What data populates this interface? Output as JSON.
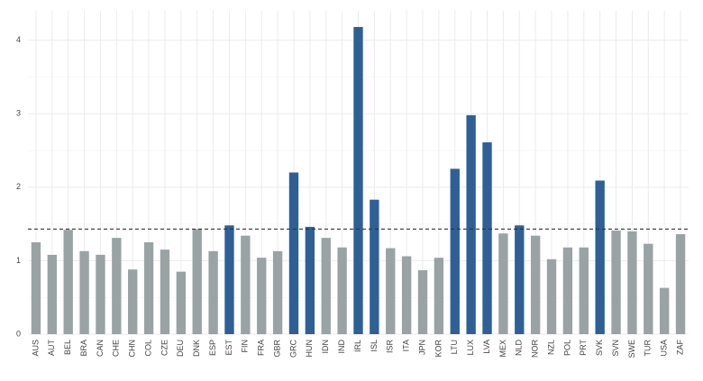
{
  "chart_data": {
    "type": "bar",
    "categories": [
      "AUS",
      "AUT",
      "BEL",
      "BRA",
      "CAN",
      "CHE",
      "CHN",
      "COL",
      "CZE",
      "DEU",
      "DNK",
      "ESP",
      "EST",
      "FIN",
      "FRA",
      "GBR",
      "GRC",
      "HUN",
      "IDN",
      "IND",
      "IRL",
      "ISL",
      "ISR",
      "ITA",
      "JPN",
      "KOR",
      "LTU",
      "LUX",
      "LVA",
      "MEX",
      "NLD",
      "NOR",
      "NZL",
      "POL",
      "PRT",
      "SVK",
      "SVN",
      "SWE",
      "TUR",
      "USA",
      "ZAF"
    ],
    "values": [
      1.25,
      1.08,
      1.42,
      1.13,
      1.08,
      1.31,
      0.88,
      1.25,
      1.15,
      0.85,
      1.43,
      1.13,
      1.48,
      1.34,
      1.04,
      1.13,
      2.2,
      1.46,
      1.31,
      1.18,
      4.18,
      1.83,
      1.17,
      1.06,
      0.87,
      1.04,
      2.25,
      2.98,
      2.61,
      1.37,
      1.48,
      1.34,
      1.02,
      1.18,
      1.18,
      2.09,
      1.41,
      1.4,
      1.23,
      0.63,
      1.36
    ],
    "colors": [
      "#99a3a4",
      "#99a3a4",
      "#99a3a4",
      "#99a3a4",
      "#99a3a4",
      "#99a3a4",
      "#99a3a4",
      "#99a3a4",
      "#99a3a4",
      "#99a3a4",
      "#99a3a4",
      "#99a3a4",
      "#2e6096",
      "#99a3a4",
      "#99a3a4",
      "#99a3a4",
      "#2e6096",
      "#2e6096",
      "#99a3a4",
      "#99a3a4",
      "#2e6096",
      "#2e6096",
      "#99a3a4",
      "#99a3a4",
      "#99a3a4",
      "#99a3a4",
      "#2e6096",
      "#2e6096",
      "#2e6096",
      "#99a3a4",
      "#2e6096",
      "#99a3a4",
      "#99a3a4",
      "#99a3a4",
      "#99a3a4",
      "#2e6096",
      "#99a3a4",
      "#99a3a4",
      "#99a3a4",
      "#99a3a4",
      "#99a3a4"
    ],
    "reference_line": 1.43,
    "ylim": [
      0,
      4.4
    ],
    "yticks": [
      0,
      1,
      2,
      3,
      4
    ],
    "grid": true
  }
}
